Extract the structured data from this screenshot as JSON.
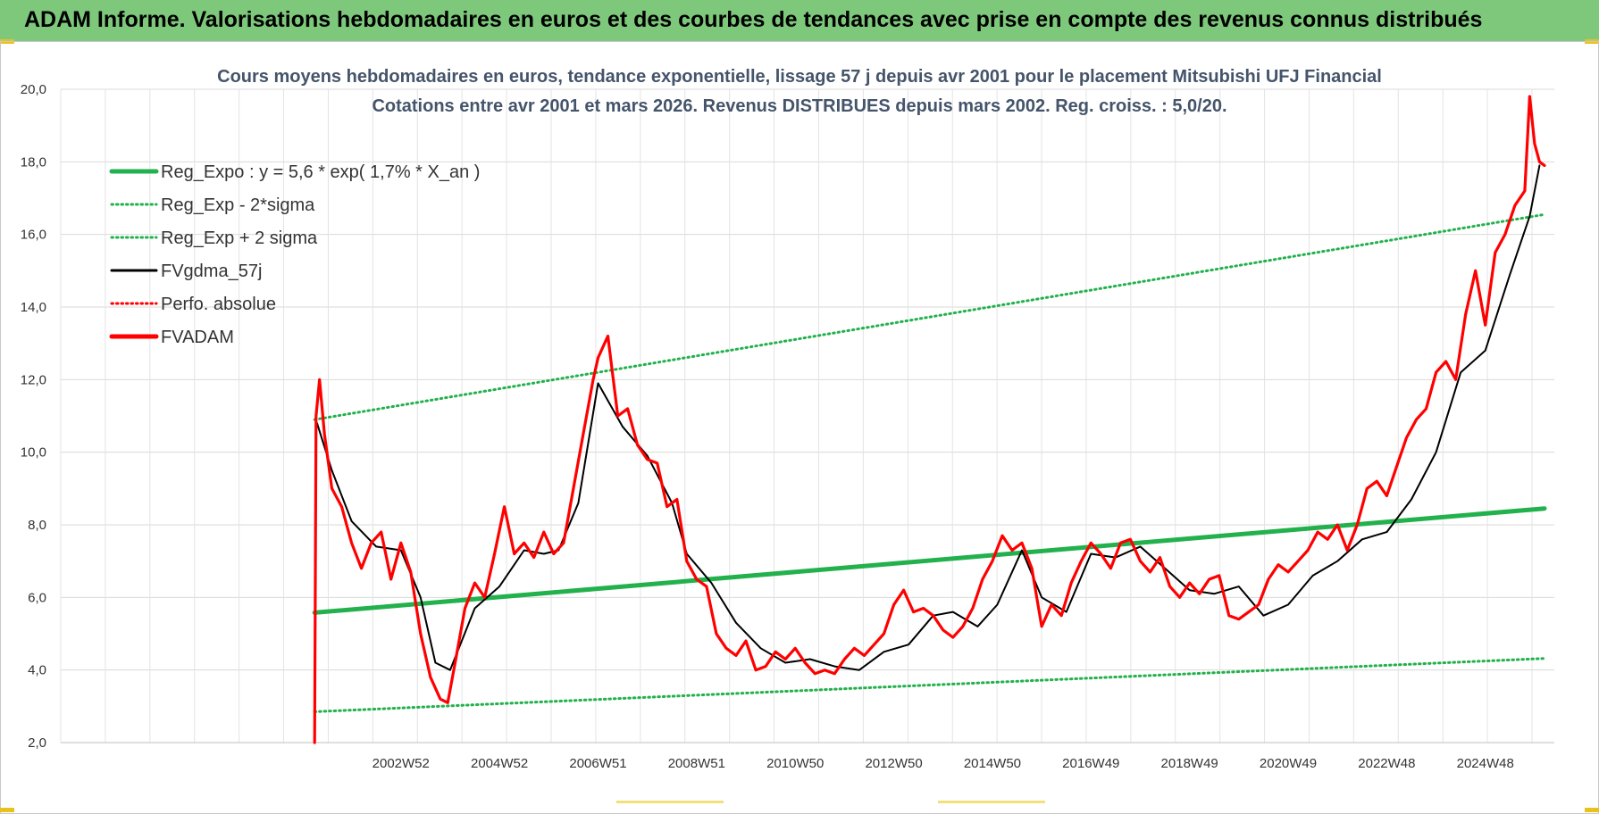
{
  "header": {
    "title": "ADAM Informe. Valorisations hebdomadaires en euros et des courbes de tendances avec prise en compte des revenus connus distribués",
    "background": "#7ec87c"
  },
  "chart_data": {
    "type": "line",
    "title": "Cours moyens hebdomadaires en euros, tendance exponentielle, lissage 57 j depuis avr 2001 pour le placement Mitsubishi UFJ Financial",
    "subtitle": "Cotations entre avr 2001 et mars 2026.  Revenus DISTRIBUES depuis mars 2002. Reg. croiss. : 5,0/20.",
    "xlabel": "",
    "ylabel": "",
    "ylim": [
      2.0,
      20.0
    ],
    "yticks": [
      "2,0",
      "4,0",
      "6,0",
      "8,0",
      "10,0",
      "12,0",
      "14,0",
      "16,0",
      "18,0",
      "20,0"
    ],
    "xticks": [
      "2002W52",
      "2004W52",
      "2006W51",
      "2008W51",
      "2010W50",
      "2012W50",
      "2014W50",
      "2016W49",
      "2018W49",
      "2020W49",
      "2022W48",
      "2024W48"
    ],
    "grid": true,
    "legend_position": "top-left",
    "series": [
      {
        "name": "Reg_Expo : y = 5,6 * exp( 1,7% *  X_an )",
        "color": "#22b14c",
        "style": "solid-thick",
        "x": [
          2001.25,
          2026.2
        ],
        "values": [
          5.58,
          8.45
        ]
      },
      {
        "name": "Reg_Exp - 2*sigma",
        "color": "#22b14c",
        "style": "dotted",
        "x": [
          2001.25,
          2026.2
        ],
        "values": [
          2.85,
          4.32
        ]
      },
      {
        "name": "Reg_Exp + 2 sigma",
        "color": "#22b14c",
        "style": "dotted",
        "x": [
          2001.25,
          2026.2
        ],
        "values": [
          10.9,
          16.55
        ]
      },
      {
        "name": "FVgdma_57j",
        "color": "#000000",
        "style": "solid",
        "x": [
          2001.3,
          2001.6,
          2002.0,
          2002.5,
          2003.0,
          2003.4,
          2003.7,
          2004.0,
          2004.5,
          2005.0,
          2005.5,
          2005.9,
          2006.2,
          2006.6,
          2007.0,
          2007.5,
          2008.0,
          2008.5,
          2008.8,
          2009.3,
          2009.8,
          2010.3,
          2010.8,
          2011.3,
          2011.8,
          2012.3,
          2012.8,
          2013.3,
          2013.8,
          2014.2,
          2014.7,
          2015.1,
          2015.6,
          2016.0,
          2016.5,
          2017.0,
          2017.5,
          2018.0,
          2018.5,
          2019.0,
          2019.5,
          2020.0,
          2020.5,
          2021.0,
          2021.5,
          2022.0,
          2022.5,
          2023.0,
          2023.5,
          2024.0,
          2024.5,
          2025.0,
          2025.5,
          2025.9,
          2026.1
        ],
        "values": [
          10.8,
          9.5,
          8.1,
          7.4,
          7.3,
          6.0,
          4.2,
          4.0,
          5.7,
          6.3,
          7.3,
          7.2,
          7.3,
          8.6,
          11.9,
          10.7,
          9.9,
          8.6,
          7.2,
          6.4,
          5.3,
          4.6,
          4.2,
          4.3,
          4.1,
          4.0,
          4.5,
          4.7,
          5.5,
          5.6,
          5.2,
          5.8,
          7.3,
          6.0,
          5.6,
          7.2,
          7.1,
          7.4,
          6.8,
          6.2,
          6.1,
          6.3,
          5.5,
          5.8,
          6.6,
          7.0,
          7.6,
          7.8,
          8.7,
          10.0,
          12.2,
          12.8,
          14.9,
          16.5,
          17.9
        ]
      },
      {
        "name": "Perfo. absolue",
        "color": "#ff0000",
        "style": "dotted",
        "x": [],
        "values": []
      },
      {
        "name": "FVADAM",
        "color": "#ff0000",
        "style": "solid-thick",
        "x": [
          2001.25,
          2001.28,
          2001.35,
          2001.45,
          2001.6,
          2001.8,
          2002.0,
          2002.2,
          2002.4,
          2002.6,
          2002.8,
          2003.0,
          2003.2,
          2003.4,
          2003.6,
          2003.8,
          2003.95,
          2004.1,
          2004.3,
          2004.5,
          2004.7,
          2004.9,
          2005.1,
          2005.3,
          2005.5,
          2005.7,
          2005.9,
          2006.1,
          2006.3,
          2006.5,
          2006.7,
          2006.9,
          2007.0,
          2007.2,
          2007.4,
          2007.6,
          2007.8,
          2008.0,
          2008.2,
          2008.4,
          2008.6,
          2008.8,
          2009.0,
          2009.2,
          2009.4,
          2009.6,
          2009.8,
          2010.0,
          2010.2,
          2010.4,
          2010.6,
          2010.8,
          2011.0,
          2011.2,
          2011.4,
          2011.6,
          2011.8,
          2012.0,
          2012.2,
          2012.4,
          2012.6,
          2012.8,
          2013.0,
          2013.2,
          2013.4,
          2013.6,
          2013.8,
          2014.0,
          2014.2,
          2014.4,
          2014.6,
          2014.8,
          2015.0,
          2015.2,
          2015.4,
          2015.6,
          2015.8,
          2016.0,
          2016.2,
          2016.4,
          2016.6,
          2016.8,
          2017.0,
          2017.2,
          2017.4,
          2017.6,
          2017.8,
          2018.0,
          2018.2,
          2018.4,
          2018.6,
          2018.8,
          2019.0,
          2019.2,
          2019.4,
          2019.6,
          2019.8,
          2020.0,
          2020.2,
          2020.4,
          2020.6,
          2020.8,
          2021.0,
          2021.2,
          2021.4,
          2021.6,
          2021.8,
          2022.0,
          2022.2,
          2022.4,
          2022.6,
          2022.8,
          2023.0,
          2023.2,
          2023.4,
          2023.6,
          2023.8,
          2024.0,
          2024.2,
          2024.4,
          2024.6,
          2024.8,
          2025.0,
          2025.2,
          2025.4,
          2025.6,
          2025.8,
          2025.9,
          2026.0,
          2026.1,
          2026.2
        ],
        "values": [
          2.0,
          11.0,
          12.0,
          10.5,
          9.0,
          8.5,
          7.5,
          6.8,
          7.5,
          7.8,
          6.5,
          7.5,
          6.7,
          5.0,
          3.8,
          3.2,
          3.1,
          4.2,
          5.7,
          6.4,
          6.0,
          7.2,
          8.5,
          7.2,
          7.5,
          7.1,
          7.8,
          7.2,
          7.5,
          9.0,
          10.5,
          12.0,
          12.6,
          13.2,
          11.0,
          11.2,
          10.2,
          9.8,
          9.7,
          8.5,
          8.7,
          7.0,
          6.5,
          6.3,
          5.0,
          4.6,
          4.4,
          4.8,
          4.0,
          4.1,
          4.5,
          4.3,
          4.6,
          4.2,
          3.9,
          4.0,
          3.9,
          4.3,
          4.6,
          4.4,
          4.7,
          5.0,
          5.8,
          6.2,
          5.6,
          5.7,
          5.5,
          5.1,
          4.9,
          5.2,
          5.7,
          6.5,
          7.0,
          7.7,
          7.3,
          7.5,
          6.8,
          5.2,
          5.8,
          5.5,
          6.4,
          7.0,
          7.5,
          7.2,
          6.8,
          7.5,
          7.6,
          7.0,
          6.7,
          7.1,
          6.3,
          6.0,
          6.4,
          6.1,
          6.5,
          6.6,
          5.5,
          5.4,
          5.6,
          5.8,
          6.5,
          6.9,
          6.7,
          7.0,
          7.3,
          7.8,
          7.6,
          8.0,
          7.3,
          8.0,
          9.0,
          9.2,
          8.8,
          9.6,
          10.4,
          10.9,
          11.2,
          12.2,
          12.5,
          12.0,
          13.8,
          15.0,
          13.5,
          15.5,
          16.0,
          16.8,
          17.2,
          19.8,
          18.5,
          18.0,
          17.9
        ]
      }
    ]
  }
}
